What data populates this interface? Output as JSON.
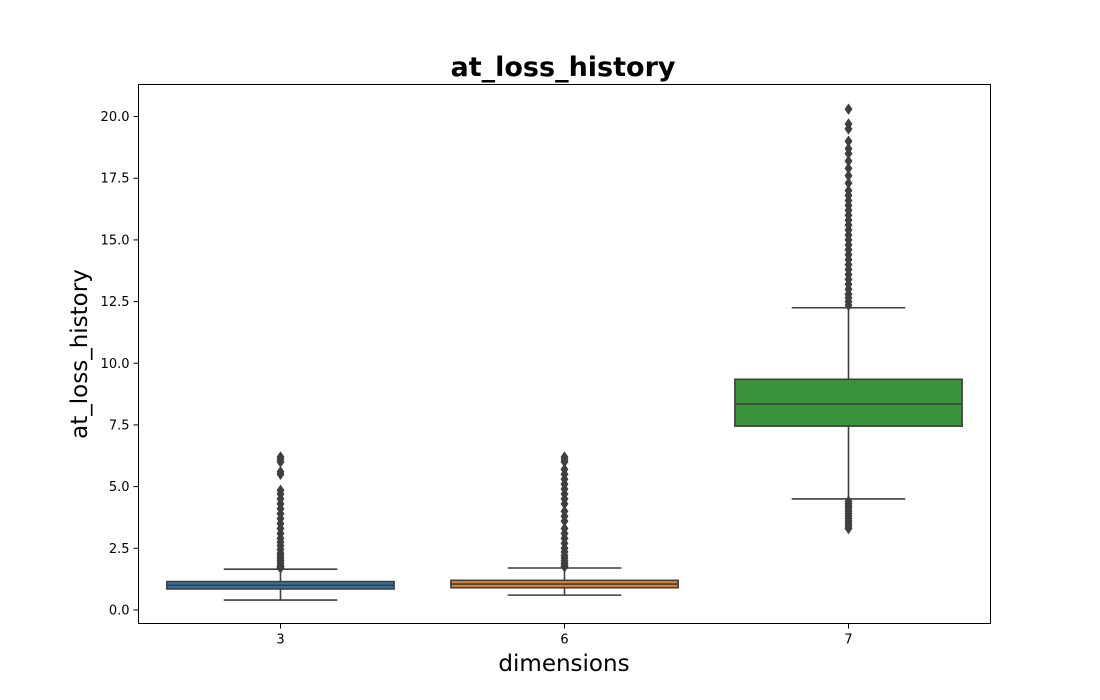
{
  "chart_data": {
    "type": "box",
    "title": "at_loss_history",
    "xlabel": "dimensions",
    "ylabel": "at_loss_history",
    "ylim": [
      -0.55,
      21.3
    ],
    "yticks": [
      "0.0",
      "2.5",
      "5.0",
      "7.5",
      "10.0",
      "12.5",
      "15.0",
      "17.5",
      "20.0"
    ],
    "grid": false,
    "categories": [
      "3",
      "6",
      "7"
    ],
    "series": [
      {
        "category": "3",
        "color": "#3274a1",
        "whisker_low": 0.4,
        "q1": 0.85,
        "median": 1.0,
        "q3": 1.15,
        "whisker_high": 1.65,
        "outliers": [
          1.7,
          1.75,
          1.8,
          1.9,
          2.0,
          2.1,
          2.2,
          2.3,
          2.45,
          2.6,
          2.75,
          2.9,
          3.1,
          3.3,
          3.5,
          3.7,
          3.9,
          4.1,
          4.3,
          4.5,
          4.7,
          4.85,
          5.5,
          5.6,
          6.0,
          6.1,
          6.2
        ]
      },
      {
        "category": "6",
        "color": "#e1812c",
        "whisker_low": 0.6,
        "q1": 0.9,
        "median": 1.05,
        "q3": 1.2,
        "whisker_high": 1.7,
        "outliers": [
          1.75,
          1.8,
          1.9,
          2.0,
          2.1,
          2.2,
          2.35,
          2.5,
          2.7,
          2.9,
          3.1,
          3.3,
          3.6,
          3.8,
          4.0,
          4.3,
          4.5,
          4.7,
          4.9,
          5.1,
          5.3,
          5.5,
          5.7,
          6.0,
          6.1,
          6.2
        ]
      },
      {
        "category": "7",
        "color": "#3a923a",
        "whisker_low": 4.5,
        "q1": 7.45,
        "median": 8.35,
        "q3": 9.35,
        "whisker_high": 12.25,
        "outliers_low": [
          4.4,
          4.3,
          4.2,
          4.1,
          4.0,
          3.9,
          3.8,
          3.7,
          3.6,
          3.5,
          3.4,
          3.3
        ],
        "outliers": [
          12.35,
          12.5,
          12.65,
          12.8,
          13.0,
          13.2,
          13.4,
          13.6,
          13.8,
          14.0,
          14.2,
          14.4,
          14.6,
          14.8,
          15.0,
          15.2,
          15.4,
          15.6,
          15.8,
          16.0,
          16.2,
          16.4,
          16.6,
          16.8,
          17.0,
          17.3,
          17.6,
          17.9,
          18.2,
          18.5,
          18.7,
          19.0,
          19.5,
          19.7,
          20.3
        ]
      }
    ]
  }
}
